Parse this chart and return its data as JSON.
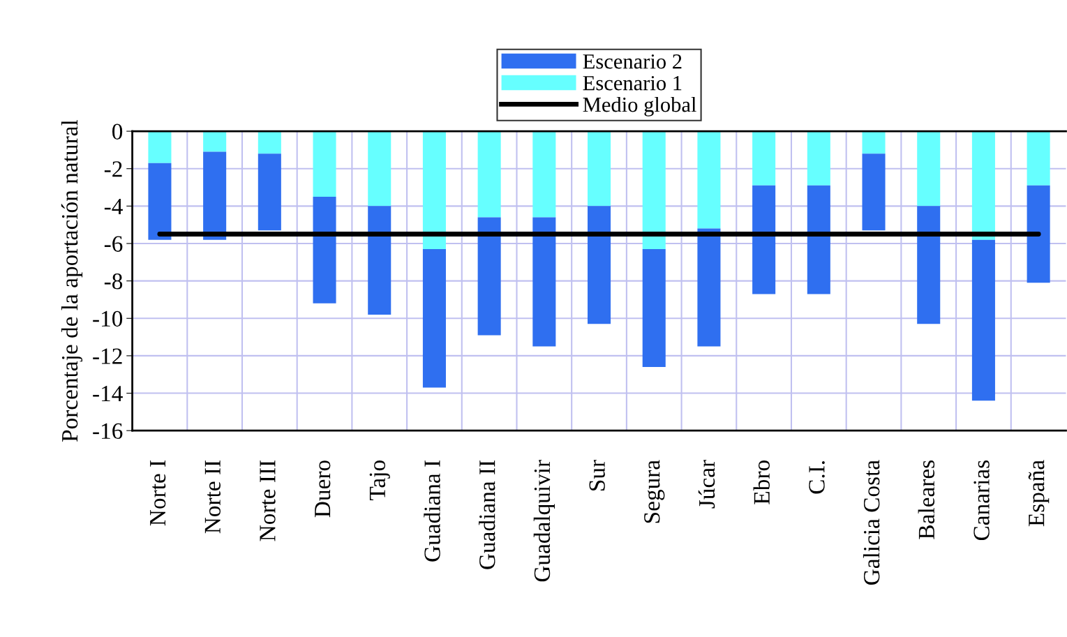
{
  "chart_data": {
    "type": "bar",
    "stacked": true,
    "ylabel": "Porcentaje de la aportación natural",
    "categories": [
      "Norte I",
      "Norte II",
      "Norte III",
      "Duero",
      "Tajo",
      "Guadiana I",
      "Guadiana II",
      "Guadalquivir",
      "Sur",
      "Segura",
      "Júcar",
      "Ebro",
      "C.I.",
      "Galicia Costa",
      "Baleares",
      "Canarias",
      "España"
    ],
    "series": [
      {
        "name": "Escenario 1",
        "color": "#66ffff",
        "values": [
          -1.7,
          -1.1,
          -1.2,
          -3.5,
          -4.0,
          -6.3,
          -4.6,
          -4.6,
          -4.0,
          -6.3,
          -5.2,
          -2.9,
          -2.9,
          -1.2,
          -4.0,
          -5.8,
          -2.9
        ]
      },
      {
        "name": "Escenario 2",
        "color": "#2f6ff0",
        "values": [
          -4.1,
          -4.7,
          -4.1,
          -5.7,
          -5.8,
          -7.4,
          -6.3,
          -6.9,
          -6.3,
          -6.3,
          -6.3,
          -5.8,
          -5.8,
          -4.1,
          -6.3,
          -8.6,
          -5.2
        ]
      },
      {
        "name": "Medio global",
        "type": "line",
        "color": "#000000",
        "values": [
          -5.5,
          -5.5,
          -5.5,
          -5.5,
          -5.5,
          -5.5,
          -5.5,
          -5.5,
          -5.5,
          -5.5,
          -5.5,
          -5.5,
          -5.5,
          -5.5,
          -5.5,
          -5.5,
          -5.5
        ]
      }
    ],
    "ylim": [
      -16,
      0
    ],
    "yticks": [
      -16,
      -14,
      -12,
      -10,
      -8,
      -6,
      -4,
      -2,
      0
    ],
    "grid": true,
    "legend": "top"
  }
}
